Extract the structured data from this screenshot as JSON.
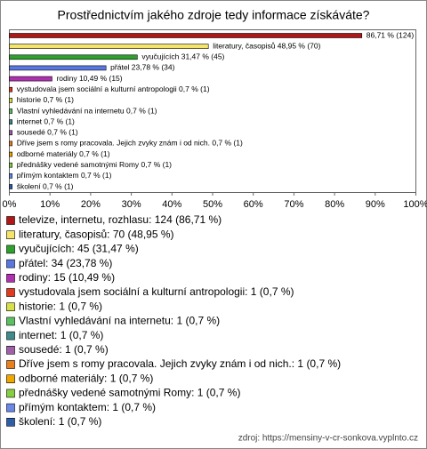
{
  "chart_data": {
    "type": "bar",
    "title": "Prostřednictvím jakého zdroje tedy informace získáváte?",
    "values": [
      86.71,
      48.95,
      31.47,
      23.78,
      10.49,
      0.7,
      0.7,
      0.7,
      0.7,
      0.7,
      0.7,
      0.7,
      0.7,
      0.7,
      0.7
    ],
    "value_labels": [
      "86,71 % (124)",
      "literatury, časopisů 48,95 % (70)",
      "vyučujících 31,47 % (45)",
      "přátel 23,78 % (34)",
      "rodiny 10,49 % (15)",
      "vystudovala jsem sociální a kulturní antropologii 0,7 % (1)",
      "historie 0,7 % (1)",
      "Vlastní vyhledávání na internetu 0,7 % (1)",
      "internet 0,7 % (1)",
      "sousedé 0,7 % (1)",
      "Dříve jsem s romy pracovala. Jejich zvyky znám i od nich. 0,7 % (1)",
      "odborné materiály 0,7 % (1)",
      "přednášky vedené samotnými Romy 0,7 % (1)",
      "přímým kontaktem 0,7 % (1)",
      "školení 0,7 % (1)"
    ],
    "categories": [
      "televize, internetu, rozhlasu: 124 (86,71 %)",
      "literatury, časopisů: 70 (48,95 %)",
      "vyučujících: 45 (31,47 %)",
      "přátel: 34 (23,78 %)",
      "rodiny: 15 (10,49 %)",
      "vystudovala jsem sociální a kulturní antropologii: 1 (0,7 %)",
      "historie: 1 (0,7 %)",
      "Vlastní vyhledávání na internetu: 1 (0,7 %)",
      "internet: 1 (0,7 %)",
      "sousedé: 1 (0,7 %)",
      "Dříve jsem s romy pracovala. Jejich zvyky znám i od nich.: 1 (0,7 %)",
      "odborné materiály: 1 (0,7 %)",
      "přednášky vedené samotnými Romy: 1 (0,7 %)",
      "přímým kontaktem: 1 (0,7 %)",
      "školení: 1 (0,7 %)"
    ],
    "colors": [
      "#b01818",
      "#f4e46a",
      "#2ea02e",
      "#5a78e0",
      "#b030b0",
      "#e03a20",
      "#d8e048",
      "#5cc060",
      "#3f8a8a",
      "#a060a8",
      "#e88020",
      "#f0a800",
      "#86d040",
      "#6a88e8",
      "#2f5ea8"
    ],
    "xlim": [
      0,
      100
    ],
    "xticks": [
      {
        "value": 0,
        "label": "0%"
      },
      {
        "value": 10,
        "label": "10%"
      },
      {
        "value": 20,
        "label": "20%"
      },
      {
        "value": 30,
        "label": "30%"
      },
      {
        "value": 40,
        "label": "40%"
      },
      {
        "value": 50,
        "label": "50%"
      },
      {
        "value": 60,
        "label": "60%"
      },
      {
        "value": 70,
        "label": "70%"
      },
      {
        "value": 80,
        "label": "80%"
      },
      {
        "value": 90,
        "label": "90%"
      },
      {
        "value": 100,
        "label": "100%"
      }
    ],
    "source": "zdroj: https://mensiny-v-cr-sonkova.vyplnto.cz"
  }
}
